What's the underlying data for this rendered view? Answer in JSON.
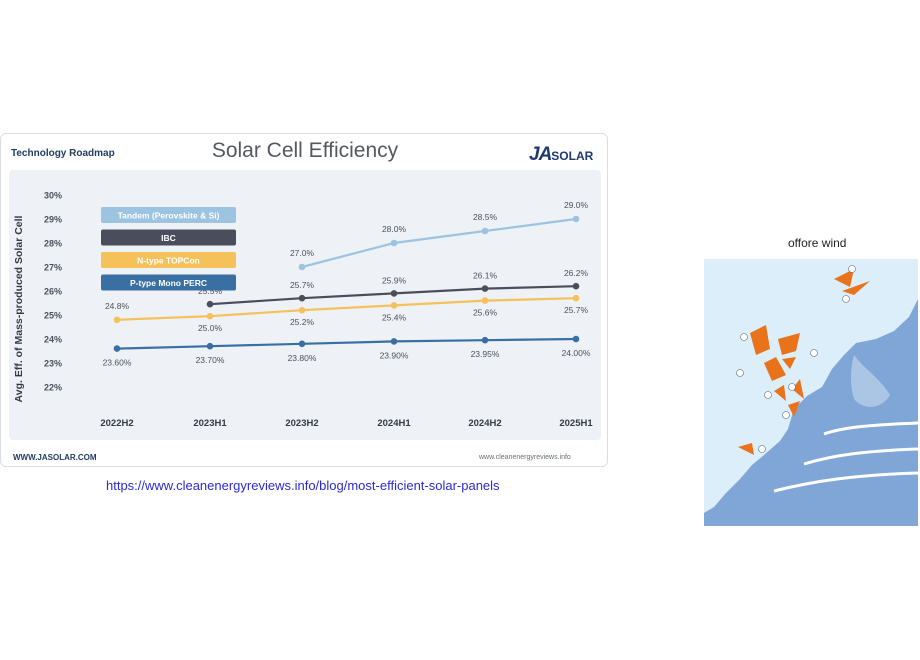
{
  "chart_card": {
    "header_left": "Technology Roadmap",
    "footer_left": "WWW.JASOLAR.COM",
    "footer_right": "www.cleanenergyreviews.info",
    "logo_ja": "JA",
    "logo_solar": "SOLAR"
  },
  "chart_data": {
    "type": "line",
    "title": "Solar Cell Efficiency",
    "ylabel": "Avg. Eff. of Mass-produced Solar Cell",
    "xlabel": "",
    "categories": [
      "2022H2",
      "2023H1",
      "2023H2",
      "2024H1",
      "2024H2",
      "2025H1"
    ],
    "ylim": [
      22,
      30
    ],
    "yticks": [
      "22%",
      "23%",
      "24%",
      "25%",
      "26%",
      "27%",
      "28%",
      "29%",
      "30%"
    ],
    "grid": false,
    "legend_position": "top-left",
    "series": [
      {
        "name": "Tandem (Perovskite & Si)",
        "color": "#9cc3e0",
        "values": [
          null,
          null,
          27.0,
          28.0,
          28.5,
          29.0
        ],
        "labels": [
          "",
          "",
          "27.0%",
          "28.0%",
          "28.5%",
          "29.0%"
        ]
      },
      {
        "name": "IBC",
        "color": "#4a4e5c",
        "values": [
          null,
          25.45,
          25.7,
          25.9,
          26.1,
          26.2
        ],
        "labels": [
          "",
          "25.5%",
          "25.7%",
          "25.9%",
          "26.1%",
          "26.2%"
        ]
      },
      {
        "name": "N-type TOPCon",
        "color": "#f5c15a",
        "values": [
          24.8,
          24.95,
          25.2,
          25.4,
          25.6,
          25.7
        ],
        "labels": [
          "24.8%",
          "25.0%",
          "25.2%",
          "25.4%",
          "25.6%",
          "25.7%"
        ]
      },
      {
        "name": "P-type Mono PERC",
        "color": "#3a6fa3",
        "values": [
          23.6,
          23.7,
          23.8,
          23.9,
          23.95,
          24.0
        ],
        "labels": [
          "23.60%",
          "23.70%",
          "23.80%",
          "23.90%",
          "23.95%",
          "24.00%"
        ]
      }
    ]
  },
  "source_link": "https://www.cleanenergyreviews.info/blog/most-efficient-solar-panels",
  "map_caption": "offore wind"
}
